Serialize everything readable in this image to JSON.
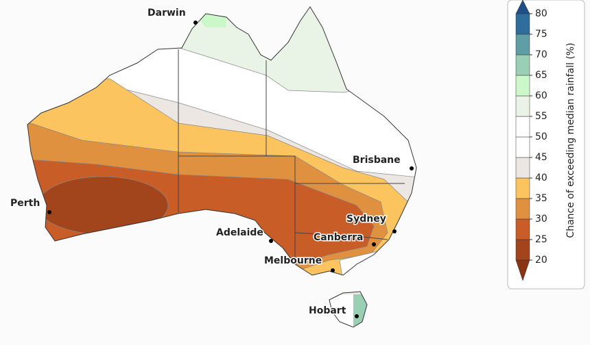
{
  "map": {
    "cities": [
      {
        "name": "Darwin"
      },
      {
        "name": "Brisbane"
      },
      {
        "name": "Perth"
      },
      {
        "name": "Adelaide"
      },
      {
        "name": "Sydney"
      },
      {
        "name": "Canberra"
      },
      {
        "name": "Melbourne"
      },
      {
        "name": "Hobart"
      }
    ],
    "legend": {
      "title": "Chance of exceeding median rainfall (%)",
      "ticks": [
        20,
        25,
        30,
        35,
        40,
        45,
        50,
        55,
        60,
        65,
        70,
        75,
        80
      ],
      "colors": [
        "#a2441c",
        "#c95d27",
        "#e0913f",
        "#fcc45f",
        "#ece7e3",
        "#ffffff",
        "#ffffff",
        "#e9f4e7",
        "#ccf7c9",
        "#99d0b4",
        "#5e9ea4",
        "#2f6e9b"
      ],
      "under_color": "#8a3414",
      "over_color": "#1d4f88"
    }
  }
}
